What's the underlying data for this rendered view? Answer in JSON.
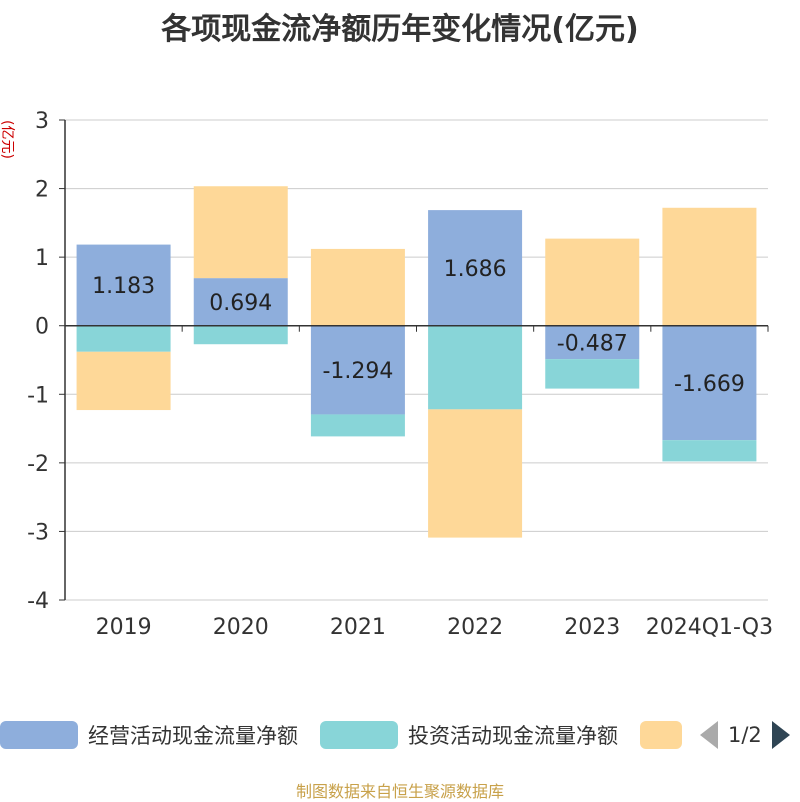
{
  "title": "各项现金流净额历年变化情况(亿元)",
  "source": "制图数据来自恒生聚源数据库",
  "legend_pager": "1/2",
  "chart_data": {
    "type": "bar",
    "stacked": true,
    "title": "各项现金流净额历年变化情况(亿元)",
    "ylabel": "(亿元)",
    "ylim": [
      -4,
      3
    ],
    "yticks": [
      3,
      2,
      1,
      0,
      -1,
      -2,
      -3,
      -4
    ],
    "grid": true,
    "legend_position": "bottom",
    "categories": [
      "2019",
      "2020",
      "2021",
      "2022",
      "2023",
      "2024Q1-Q3"
    ],
    "series": [
      {
        "name": "经营活动现金流量净额",
        "color": "#8eaedc",
        "values": [
          1.183,
          0.694,
          -1.294,
          1.686,
          -0.487,
          -1.669
        ],
        "labels": true
      },
      {
        "name": "投资活动现金流量净额",
        "color": "#88d5d8",
        "values": [
          -0.38,
          -0.27,
          -0.32,
          -1.22,
          -0.43,
          -0.31
        ],
        "labels": false
      },
      {
        "name": "",
        "color": "#fed898",
        "values": [
          -0.85,
          1.34,
          1.12,
          -1.87,
          1.27,
          1.72
        ],
        "labels": false
      }
    ]
  }
}
